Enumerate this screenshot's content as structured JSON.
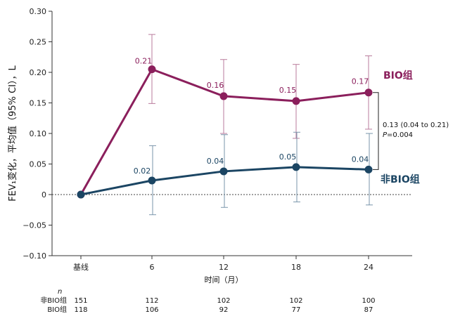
{
  "chart_data": {
    "type": "line",
    "title": "",
    "ylabel": "FEV₁变化，平均值（95% CI），L",
    "xlabel": "时间（月）",
    "ylim": [
      -0.1,
      0.3
    ],
    "yticks": [
      "0.30",
      "0.25",
      "0.20",
      "0.15",
      "0.10",
      "0.05",
      "0",
      "−0.05",
      "−0.10"
    ],
    "ytick_values": [
      0.3,
      0.25,
      0.2,
      0.15,
      0.1,
      0.05,
      0,
      -0.05,
      -0.1
    ],
    "x": [
      0,
      6,
      12,
      18,
      24
    ],
    "categories": [
      "基线",
      "6",
      "12",
      "18",
      "24"
    ],
    "series": [
      {
        "name": "BIO组",
        "color": "#8b1f5c",
        "values": [
          0,
          0.205,
          0.161,
          0.153,
          0.167
        ],
        "labels": [
          "",
          "0.21",
          "0.16",
          "0.15",
          "0.17"
        ],
        "ci_low": [
          null,
          0.149,
          0.1,
          0.092,
          0.107
        ],
        "ci_high": [
          null,
          0.262,
          0.221,
          0.213,
          0.227
        ]
      },
      {
        "name": "非BIO组",
        "color": "#1b4563",
        "values": [
          0,
          0.023,
          0.038,
          0.045,
          0.041
        ],
        "labels": [
          "",
          "0.02",
          "0.04",
          "0.05",
          "0.04"
        ],
        "ci_low": [
          null,
          -0.033,
          -0.021,
          -0.012,
          -0.017
        ],
        "ci_high": [
          null,
          0.08,
          0.098,
          0.102,
          0.1
        ]
      }
    ],
    "annotation": {
      "line1": "0.13 (0.04 to 0.21)",
      "p_label": "P",
      "p_value": "=0.004"
    },
    "n_table": {
      "header": "n",
      "rows": [
        {
          "label": "非BIO组",
          "values": [
            "151",
            "112",
            "102",
            "102",
            "100"
          ]
        },
        {
          "label": "BIO组",
          "values": [
            "118",
            "106",
            "92",
            "77",
            "87"
          ]
        }
      ]
    }
  }
}
